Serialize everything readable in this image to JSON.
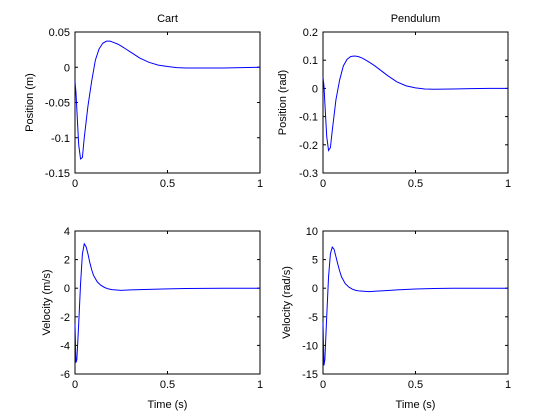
{
  "figure": {
    "background": "#ffffff",
    "axis_color": "#000000"
  },
  "chart_data": [
    {
      "type": "line",
      "title": "Cart",
      "xlabel": "",
      "ylabel": "Position (m)",
      "xlim": [
        0,
        1
      ],
      "ylim": [
        -0.15,
        0.05
      ],
      "xticks": [
        0,
        0.5,
        1
      ],
      "xtick_labels": [
        "0",
        "0.5",
        "1"
      ],
      "yticks": [
        -0.15,
        -0.1,
        -0.05,
        0,
        0.05
      ],
      "ytick_labels": [
        "-0.15",
        "-0.1",
        "-0.05",
        "0",
        "0.05"
      ],
      "grid": false,
      "series": [
        {
          "color": "#0000ff",
          "x": [
            0,
            0.005,
            0.01,
            0.02,
            0.03,
            0.04,
            0.05,
            0.07,
            0.09,
            0.11,
            0.13,
            0.15,
            0.17,
            0.19,
            0.21,
            0.23,
            0.25,
            0.28,
            0.31,
            0.35,
            0.4,
            0.45,
            0.5,
            0.55,
            0.6,
            0.7,
            0.8,
            0.9,
            1.0
          ],
          "y": [
            -0.02,
            -0.035,
            -0.06,
            -0.11,
            -0.13,
            -0.128,
            -0.1,
            -0.055,
            -0.02,
            0.01,
            0.026,
            0.034,
            0.037,
            0.037,
            0.035,
            0.033,
            0.03,
            0.025,
            0.02,
            0.013,
            0.007,
            0.003,
            0.001,
            -0.0005,
            -0.001,
            -0.001,
            -0.001,
            -0.0005,
            0
          ]
        }
      ]
    },
    {
      "type": "line",
      "title": "Pendulum",
      "xlabel": "",
      "ylabel": "Position (rad)",
      "xlim": [
        0,
        1
      ],
      "ylim": [
        -0.3,
        0.2
      ],
      "xticks": [
        0,
        0.5,
        1
      ],
      "xtick_labels": [
        "0",
        "0.5",
        "1"
      ],
      "yticks": [
        -0.3,
        -0.2,
        -0.1,
        0,
        0.1,
        0.2
      ],
      "ytick_labels": [
        "-0.3",
        "-0.2",
        "-0.1",
        "0",
        "0.1",
        "0.2"
      ],
      "grid": false,
      "series": [
        {
          "color": "#0000ff",
          "x": [
            0,
            0.005,
            0.01,
            0.02,
            0.03,
            0.04,
            0.05,
            0.07,
            0.09,
            0.11,
            0.13,
            0.15,
            0.17,
            0.19,
            0.21,
            0.23,
            0.25,
            0.28,
            0.31,
            0.35,
            0.4,
            0.45,
            0.5,
            0.55,
            0.6,
            0.7,
            0.8,
            0.9,
            1.0
          ],
          "y": [
            0.04,
            0.01,
            -0.05,
            -0.17,
            -0.22,
            -0.21,
            -0.15,
            -0.04,
            0.03,
            0.08,
            0.103,
            0.113,
            0.115,
            0.113,
            0.108,
            0.101,
            0.093,
            0.08,
            0.065,
            0.045,
            0.023,
            0.009,
            0.002,
            -0.002,
            -0.003,
            -0.002,
            -0.001,
            0,
            0
          ]
        }
      ]
    },
    {
      "type": "line",
      "title": "",
      "xlabel": "Time (s)",
      "ylabel": "Velocity (m/s)",
      "xlim": [
        0,
        1
      ],
      "ylim": [
        -6,
        4
      ],
      "xticks": [
        0,
        0.5,
        1
      ],
      "xtick_labels": [
        "0",
        "0.5",
        "1"
      ],
      "yticks": [
        -6,
        -4,
        -2,
        0,
        2,
        4
      ],
      "ytick_labels": [
        "-6",
        "-4",
        "-2",
        "0",
        "2",
        "4"
      ],
      "grid": false,
      "series": [
        {
          "color": "#0000ff",
          "x": [
            0,
            0.005,
            0.01,
            0.02,
            0.03,
            0.04,
            0.05,
            0.06,
            0.07,
            0.08,
            0.09,
            0.1,
            0.12,
            0.14,
            0.16,
            0.18,
            0.2,
            0.25,
            0.3,
            0.35,
            0.4,
            0.5,
            0.6,
            0.7,
            0.8,
            0.9,
            1.0
          ],
          "y": [
            -2.5,
            -5.2,
            -5.0,
            -2.5,
            0.3,
            2.4,
            3.1,
            2.9,
            2.4,
            1.8,
            1.3,
            0.9,
            0.45,
            0.2,
            0.05,
            -0.05,
            -0.1,
            -0.15,
            -0.12,
            -0.1,
            -0.08,
            -0.05,
            -0.02,
            -0.01,
            0,
            0,
            0
          ]
        }
      ]
    },
    {
      "type": "line",
      "title": "",
      "xlabel": "Time (s)",
      "ylabel": "Velocity (rad/s)",
      "xlim": [
        0,
        1
      ],
      "ylim": [
        -15,
        10
      ],
      "xticks": [
        0,
        0.5,
        1
      ],
      "xtick_labels": [
        "0",
        "0.5",
        "1"
      ],
      "yticks": [
        -15,
        -10,
        -5,
        0,
        5,
        10
      ],
      "ytick_labels": [
        "-15",
        "-10",
        "-5",
        "0",
        "5",
        "10"
      ],
      "grid": false,
      "series": [
        {
          "color": "#0000ff",
          "x": [
            0,
            0.005,
            0.01,
            0.02,
            0.03,
            0.04,
            0.05,
            0.06,
            0.07,
            0.08,
            0.09,
            0.1,
            0.12,
            0.14,
            0.16,
            0.18,
            0.2,
            0.25,
            0.3,
            0.35,
            0.4,
            0.5,
            0.6,
            0.7,
            0.8,
            0.9,
            1.0
          ],
          "y": [
            -6,
            -13.5,
            -12.5,
            -5,
            2,
            6,
            7.2,
            6.8,
            5.5,
            4.2,
            3.0,
            2.0,
            0.8,
            0.2,
            -0.2,
            -0.4,
            -0.5,
            -0.6,
            -0.5,
            -0.4,
            -0.3,
            -0.15,
            -0.05,
            0,
            0,
            0,
            0
          ]
        }
      ]
    }
  ]
}
